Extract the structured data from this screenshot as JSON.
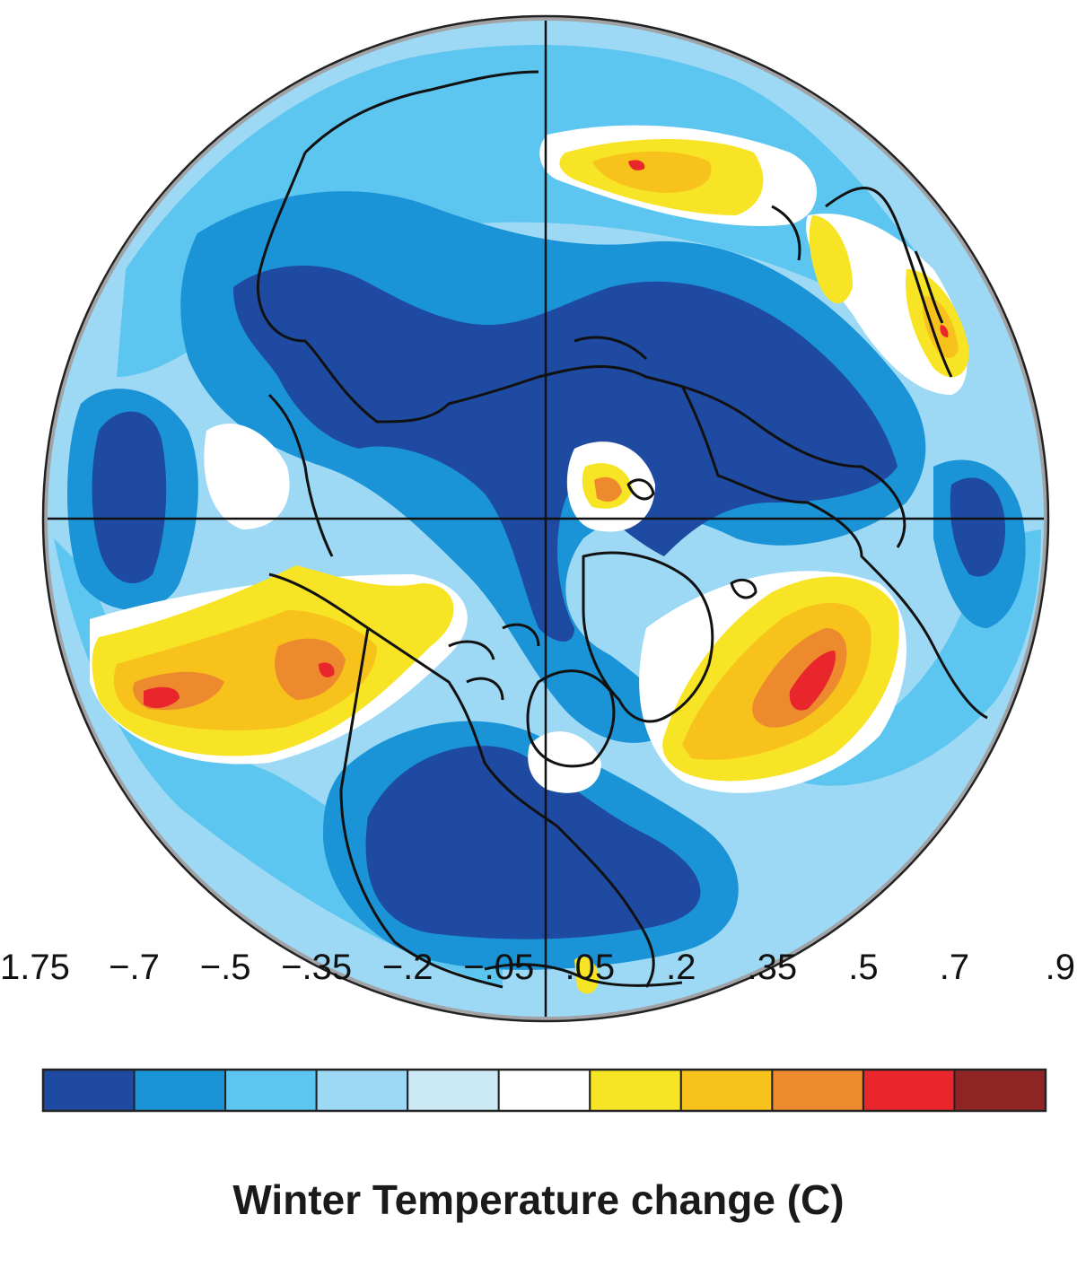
{
  "title": "Winter Temperature change (C)",
  "edge_glyph": ")",
  "colorbar": {
    "tick_labels": [
      "1.75",
      "−.7",
      "−.5",
      "−.35",
      "−.2",
      "−.05",
      ".05",
      ".2",
      ".35",
      ".5",
      ".7",
      ".9"
    ],
    "bin_colors": [
      "#1e4aa2",
      "#1a94d6",
      "#5cc6f0",
      "#9dd9f5",
      "#cceaf6",
      "#ffffff",
      "#f7e424",
      "#f8c21c",
      "#ee8a2e",
      "#e8262b",
      "#8e2424"
    ]
  },
  "map": {
    "projection": "polar-stereographic-north",
    "rim_color": "#a1a3a6",
    "graticule": "cross through pole"
  }
}
